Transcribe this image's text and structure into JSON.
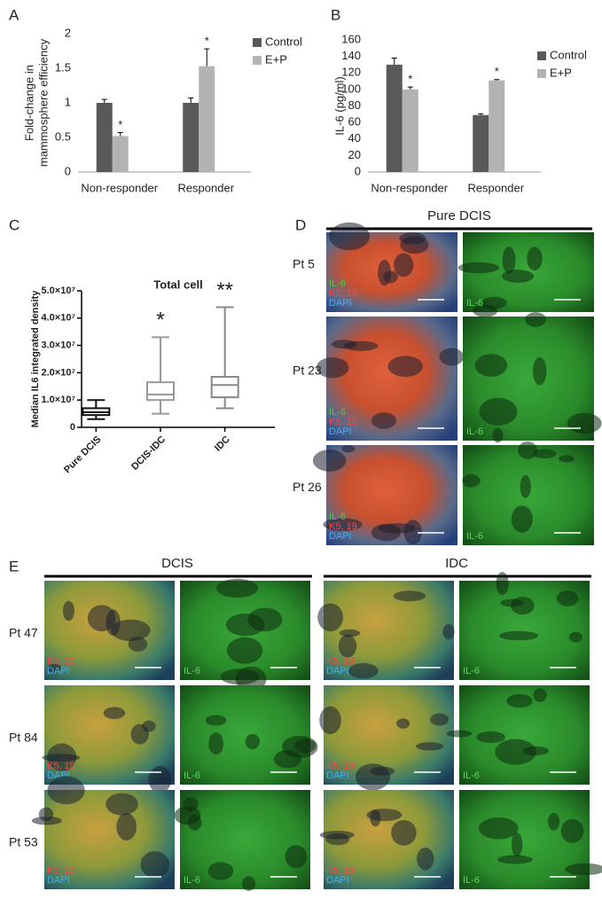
{
  "chart_data": [
    {
      "type": "bar",
      "panel": "A",
      "ylabel": [
        "Fold-change in",
        "mammosphere efficiency"
      ],
      "categories": [
        "Non-responder",
        "Responder"
      ],
      "series": [
        {
          "name": "Control",
          "color": "#595959",
          "values": [
            1,
            1
          ],
          "errors": [
            0.05,
            0.07
          ]
        },
        {
          "name": "E+P",
          "color": "#b3b3b3",
          "values": [
            0.52,
            1.53
          ],
          "errors": [
            0.05,
            0.25
          ],
          "annotations": [
            "*",
            "*"
          ]
        }
      ],
      "ylim": [
        0,
        2
      ],
      "yticks": [
        0,
        0.5,
        1,
        1.5,
        2
      ],
      "legend": "right"
    },
    {
      "type": "bar",
      "panel": "B",
      "ylabel": "IL-6 (pg/ml)",
      "categories": [
        "Non-responder",
        "Responder"
      ],
      "series": [
        {
          "name": "Control",
          "color": "#595959",
          "values": [
            130,
            69
          ],
          "errors": [
            8,
            1.5
          ]
        },
        {
          "name": "E+P",
          "color": "#b3b3b3",
          "values": [
            100,
            111
          ],
          "errors": [
            3,
            1
          ],
          "annotations": [
            "*",
            "*"
          ]
        }
      ],
      "ylim": [
        0,
        160
      ],
      "yticks": [
        0,
        20,
        40,
        60,
        80,
        100,
        120,
        140,
        160
      ],
      "legend": "right"
    },
    {
      "type": "box",
      "panel": "C",
      "title": "Total cell",
      "ylabel": "Median IL6 integrated density",
      "categories": [
        "Pure DCIS",
        "DCIS-IDC",
        "IDC"
      ],
      "colors": [
        "#111111",
        "#999999",
        "#888888"
      ],
      "min": [
        3000000,
        5000000,
        7000000
      ],
      "q1": [
        4500000,
        10000000,
        11000000
      ],
      "median": [
        5500000,
        12000000,
        15500000
      ],
      "q3": [
        7000000,
        16500000,
        18500000
      ],
      "max": [
        10000000,
        33000000,
        44000000
      ],
      "annotations": [
        null,
        "*",
        "**"
      ],
      "ylim": [
        0,
        50000000
      ],
      "yticks": [
        0,
        {
          "value": 10000000,
          "label": "1.0×10⁷"
        },
        {
          "value": 20000000,
          "label": "2.0×10⁷"
        },
        {
          "value": 30000000,
          "label": "3.0×10⁷"
        },
        {
          "value": 40000000,
          "label": "4.0×10⁷"
        },
        {
          "value": 50000000,
          "label": "5.0×10⁷"
        }
      ]
    }
  ],
  "panel_d": {
    "label": "D",
    "title": "Pure DCIS",
    "rows": [
      "Pt 5",
      "Pt 23",
      "Pt 26"
    ],
    "merged_labels": [
      "IL-6",
      "K5, 19",
      "DAPI"
    ],
    "single_label": "IL-6"
  },
  "panel_e": {
    "label": "E",
    "groups": [
      "DCIS",
      "IDC"
    ],
    "rows": [
      "Pt 47",
      "Pt 84",
      "Pt 53"
    ],
    "merged_labels": [
      "K5, 19",
      "DAPI"
    ],
    "single_label": "IL-6"
  }
}
